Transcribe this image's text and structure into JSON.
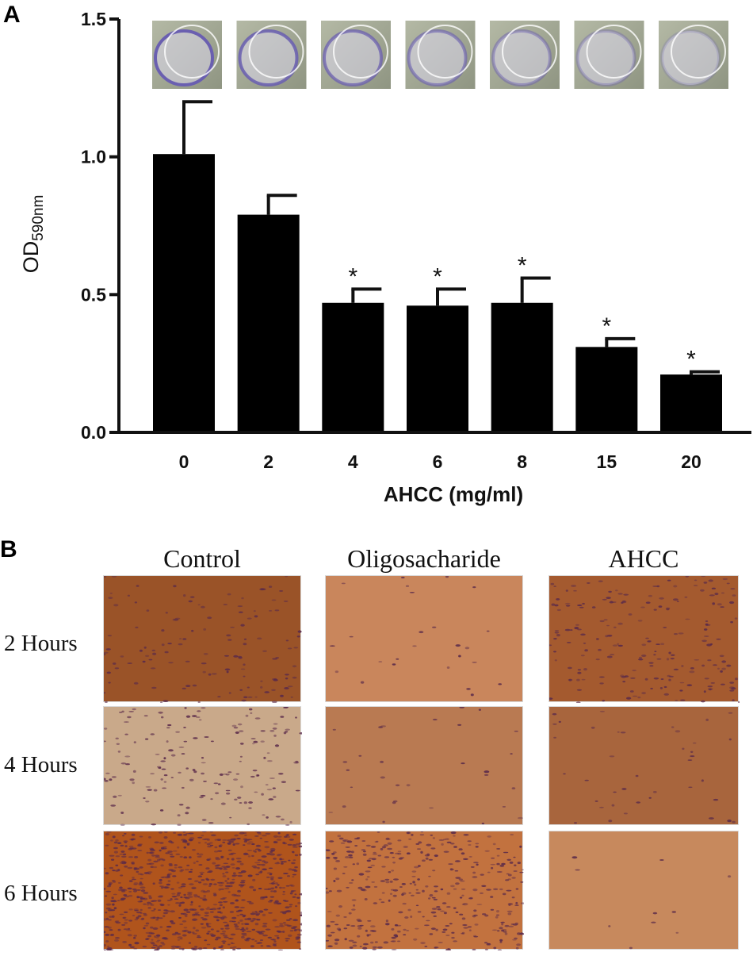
{
  "panel_a_label": "A",
  "panel_b_label": "B",
  "chart_data": {
    "type": "bar",
    "categories": [
      "0",
      "2",
      "4",
      "6",
      "8",
      "15",
      "20"
    ],
    "values": [
      1.01,
      0.79,
      0.47,
      0.46,
      0.47,
      0.31,
      0.21
    ],
    "errors": [
      0.19,
      0.07,
      0.05,
      0.06,
      0.09,
      0.03,
      0.01
    ],
    "significance": [
      "",
      "",
      "*",
      "*",
      "*",
      "*",
      "*"
    ],
    "xlabel": "AHCC (mg/ml)",
    "ylabel": "OD",
    "ylabel_subscript": "590nm",
    "ylim": [
      0,
      1.5
    ],
    "yticks": [
      "0.0",
      "0.5",
      "1.0",
      "1.5"
    ],
    "bar_color": "#000000",
    "plate_photos": 7
  },
  "panel_b": {
    "columns": [
      "Control",
      "Oligosacharide",
      "AHCC"
    ],
    "rows": [
      "2 Hours",
      "4 Hours",
      "6 Hours"
    ],
    "tints": [
      [
        "#9a5328",
        "#c9865c",
        "#a45a2f"
      ],
      [
        "#c9a98a",
        "#b97a52",
        "#a8653d"
      ],
      [
        "#b0541c",
        "#c2723f",
        "#c7895d"
      ]
    ],
    "densities": [
      [
        130,
        25,
        200
      ],
      [
        170,
        30,
        40
      ],
      [
        900,
        400,
        10
      ]
    ]
  }
}
